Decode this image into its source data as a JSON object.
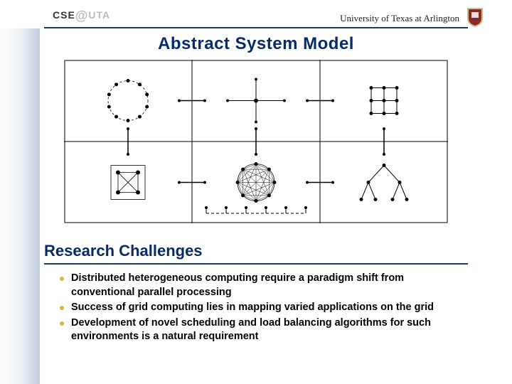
{
  "header": {
    "logo_text": "CSE",
    "logo_suffix": "UTA",
    "university": "University of Texas at Arlington"
  },
  "title": "Abstract System Model",
  "section_title": "Research Challenges",
  "bullets": [
    "Distributed heterogeneous computing require a paradigm shift from conventional parallel processing",
    "Success of grid computing lies in mapping varied applications on the grid",
    "Development of novel scheduling and load balancing algorithms for such environments is a natural requirement"
  ],
  "colors": {
    "heading": "#0a2a66",
    "rule": "#1a3a6e",
    "bullet": "#d4b845",
    "crest_shield": "#8c2a2a",
    "crest_border": "#d0c28a"
  },
  "diagram": {
    "type": "network",
    "background": "#ffffff",
    "grid_line_color": "#000000",
    "grid_line_width": 1,
    "rows": 2,
    "cols": 3,
    "inter_edge_color": "#000000",
    "inter_edge_width": 1,
    "cells": [
      {
        "r": 0,
        "c": 0,
        "kind": "ring",
        "n": 10,
        "radius": 28,
        "node_r": 2.5
      },
      {
        "r": 0,
        "c": 1,
        "kind": "hub",
        "node_r": 3
      },
      {
        "r": 0,
        "c": 2,
        "kind": "mesh3x3",
        "spacing": 18,
        "node_r": 2.5
      },
      {
        "r": 1,
        "c": 0,
        "kind": "cluster4",
        "node_r": 3
      },
      {
        "r": 1,
        "c": 1,
        "kind": "complete",
        "n": 8,
        "radius": 26,
        "node_r": 2.5
      },
      {
        "r": 1,
        "c": 2,
        "kind": "tree",
        "node_r": 2.5
      }
    ]
  }
}
